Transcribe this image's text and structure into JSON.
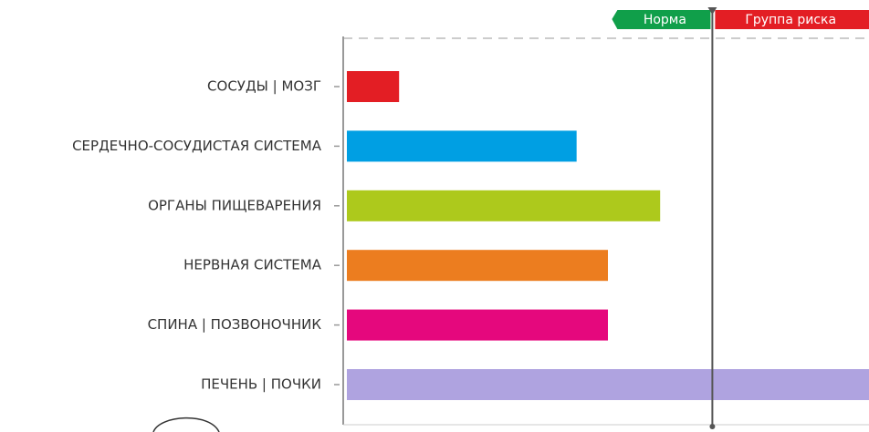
{
  "chart_data": {
    "type": "bar",
    "orientation": "horizontal",
    "categories": [
      "СОСУДЫ | МОЗГ",
      "СЕРДЕЧНО-СОСУДИСТАЯ СИСТЕМА",
      "ОРГАНЫ ПИЩЕВАРЕНИЯ",
      "НЕРВНАЯ СИСТЕМА",
      "СПИНА | ПОЗВОНОЧНИК",
      "ПЕЧЕНЬ | ПОЧКИ"
    ],
    "values": [
      10,
      44,
      60,
      50,
      50,
      100
    ],
    "colors": [
      "#e31e24",
      "#009fe3",
      "#adc91c",
      "#ec7d1f",
      "#e5087d",
      "#afa3e0"
    ],
    "xlim": [
      0,
      100
    ],
    "threshold": 70,
    "zones": [
      {
        "label": "Норма",
        "color": "#109f4a"
      },
      {
        "label": "Группа риска",
        "color": "#e31e24"
      }
    ]
  }
}
